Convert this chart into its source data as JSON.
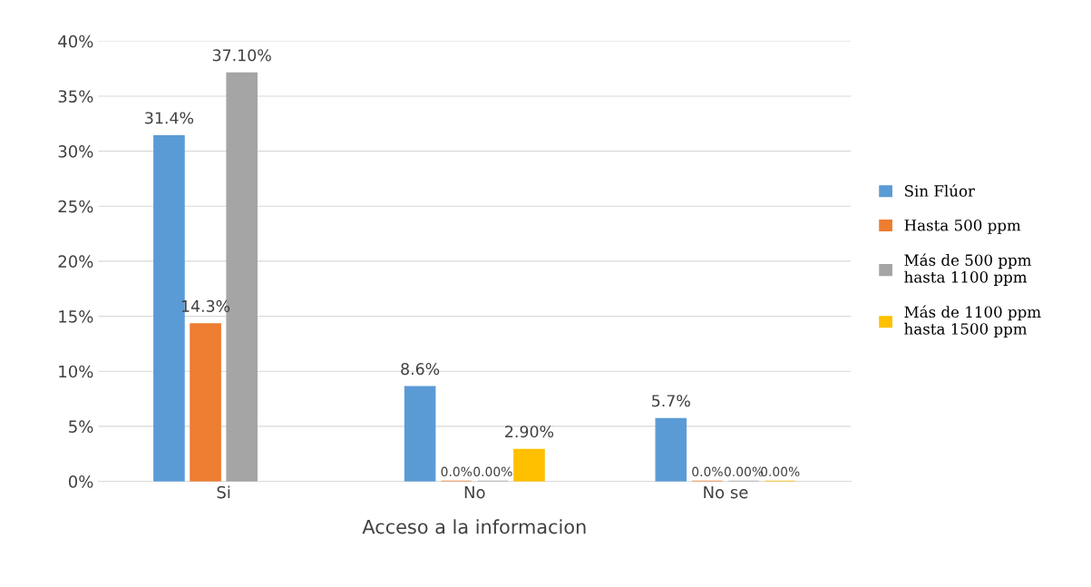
{
  "chart_data": {
    "type": "bar",
    "xlabel": "Acceso a la informacion",
    "categories": [
      "Si",
      "No",
      "No se"
    ],
    "series": [
      {
        "name": "Sin Flúor",
        "color": "#5b9bd5",
        "values": [
          31.4,
          8.6,
          5.7
        ],
        "value_labels": [
          "31.4%",
          "8.6%",
          "5.7%"
        ]
      },
      {
        "name": "Hasta 500 ppm",
        "color": "#ed7d31",
        "values": [
          14.3,
          0.0,
          0.0
        ],
        "value_labels": [
          "14.3%",
          "0.0%",
          "0.0%"
        ]
      },
      {
        "name": "Más de 500 ppm\nhasta 1100 ppm",
        "color": "#a5a5a5",
        "values": [
          37.1,
          0.0,
          0.0
        ],
        "value_labels": [
          "37.10%",
          "0.00%",
          "0.00%"
        ]
      },
      {
        "name": "Más de 1100 ppm\nhasta 1500 ppm",
        "color": "#ffc000",
        "values": [
          null,
          2.9,
          0.0
        ],
        "value_labels": [
          null,
          "2.90%",
          "0.00%"
        ]
      }
    ],
    "ylim": [
      0,
      40
    ],
    "yticks": [
      {
        "value": 0,
        "label": "0%"
      },
      {
        "value": 5,
        "label": "5%"
      },
      {
        "value": 10,
        "label": "10%"
      },
      {
        "value": 15,
        "label": "15%"
      },
      {
        "value": 20,
        "label": "20%"
      },
      {
        "value": 25,
        "label": "25%"
      },
      {
        "value": 30,
        "label": "30%"
      },
      {
        "value": 35,
        "label": "35%"
      },
      {
        "value": 40,
        "label": "40%"
      }
    ],
    "grid": "y",
    "legend": "right"
  }
}
